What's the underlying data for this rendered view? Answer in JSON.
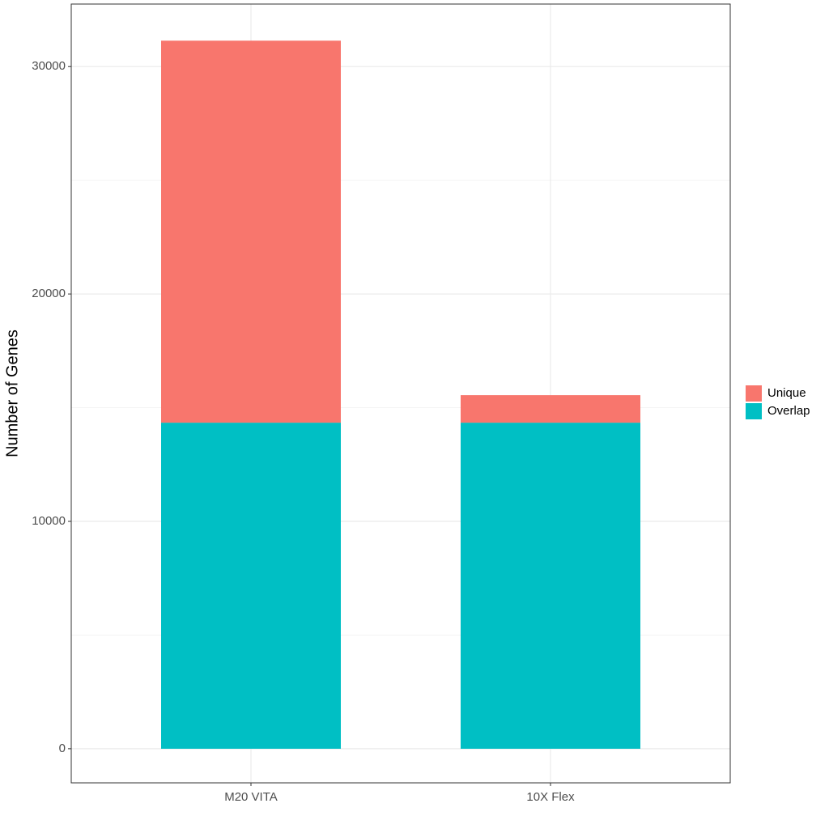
{
  "chart_data": {
    "type": "stacked_bar",
    "y_label": "Number of Genes",
    "categories": [
      "M20 VITA",
      "10X Flex"
    ],
    "series": [
      {
        "name": "Overlap",
        "color": "#00bfc4",
        "values": [
          14340,
          14340
        ]
      },
      {
        "name": "Unique",
        "color": "#f8766d",
        "values": [
          16800,
          1210
        ]
      }
    ],
    "ylim": [
      -1500,
      32750
    ],
    "yticks": [
      0,
      10000,
      20000,
      30000
    ],
    "minor_yticks": [
      5000,
      15000,
      25000
    ],
    "grid": true,
    "legend": "right"
  }
}
